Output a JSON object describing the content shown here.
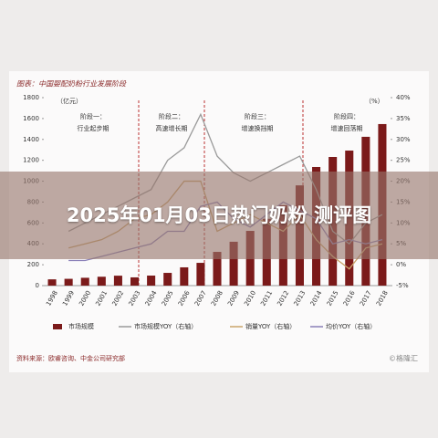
{
  "header": {
    "overlay_title": "2025年01月03日热门奶粉 测评图"
  },
  "chart_data": {
    "type": "bar",
    "title": "图表：中国婴配奶粉行业发展阶段",
    "y_unit": "（亿元）",
    "y2_unit": "（%）",
    "categories": [
      "1998",
      "1999",
      "2000",
      "2001",
      "2002",
      "2003",
      "2004",
      "2005",
      "2006",
      "2007",
      "2008",
      "2009",
      "2010",
      "2011",
      "2012",
      "2013",
      "2014",
      "2015",
      "2016",
      "2017",
      "2018"
    ],
    "series": [
      {
        "name": "市场规模",
        "type": "bar",
        "color": "#7b1a1a",
        "values": [
          60,
          65,
          75,
          85,
          95,
          79,
          96,
          122,
          175,
          218,
          323,
          420,
          524,
          640,
          770,
          960,
          1136,
          1232,
          1293,
          1425,
          1547
        ]
      },
      {
        "name": "市场规模YOY（右轴）",
        "type": "line",
        "axis": "y2",
        "color": "#9a9a9a",
        "values": [
          null,
          8,
          10,
          12,
          14,
          16,
          18,
          25,
          28,
          36,
          26,
          22,
          20,
          22,
          24,
          26,
          18,
          8,
          5,
          10,
          12
        ]
      },
      {
        "name": "销量YOY（右轴）",
        "type": "line",
        "axis": "y2",
        "color": "#c9a46a",
        "values": [
          null,
          4,
          5,
          6,
          8,
          11,
          12,
          15,
          20,
          20,
          8,
          10,
          12,
          10,
          8,
          12,
          6,
          2,
          -1,
          4,
          5
        ]
      },
      {
        "name": "均价YOY（右轴）",
        "type": "line",
        "axis": "y2",
        "color": "#8a80b8",
        "values": [
          null,
          1,
          1,
          2,
          3,
          4,
          5,
          8,
          8,
          14,
          15,
          11,
          9,
          12,
          15,
          13,
          11,
          5,
          6,
          5,
          6
        ]
      }
    ],
    "ylim": [
      0,
      1800
    ],
    "yticks": [
      0,
      200,
      400,
      600,
      800,
      1000,
      1200,
      1400,
      1600,
      1800
    ],
    "y2lim": [
      -5,
      40
    ],
    "y2ticks": [
      {
        "value": -5,
        "label": "-5%"
      },
      {
        "value": 0,
        "label": "0%"
      },
      {
        "value": 5,
        "label": "5%"
      },
      {
        "value": 10,
        "label": "10%"
      },
      {
        "value": 15,
        "label": "15%"
      },
      {
        "value": 20,
        "label": "20%"
      },
      {
        "value": 25,
        "label": "25%"
      },
      {
        "value": 30,
        "label": "30%"
      },
      {
        "value": 35,
        "label": "35%"
      },
      {
        "value": 40,
        "label": "40%"
      }
    ],
    "stages": [
      {
        "name": "阶段一：",
        "desc": "行业起步期"
      },
      {
        "name": "阶段二：",
        "desc": "高速增长期"
      },
      {
        "name": "阶段三：",
        "desc": "增速换挡期"
      },
      {
        "name": "阶段四：",
        "desc": "增速回落期"
      }
    ],
    "source": "资料来源：欧睿咨询、中金公司研究部",
    "watermark": "©格隆汇"
  }
}
